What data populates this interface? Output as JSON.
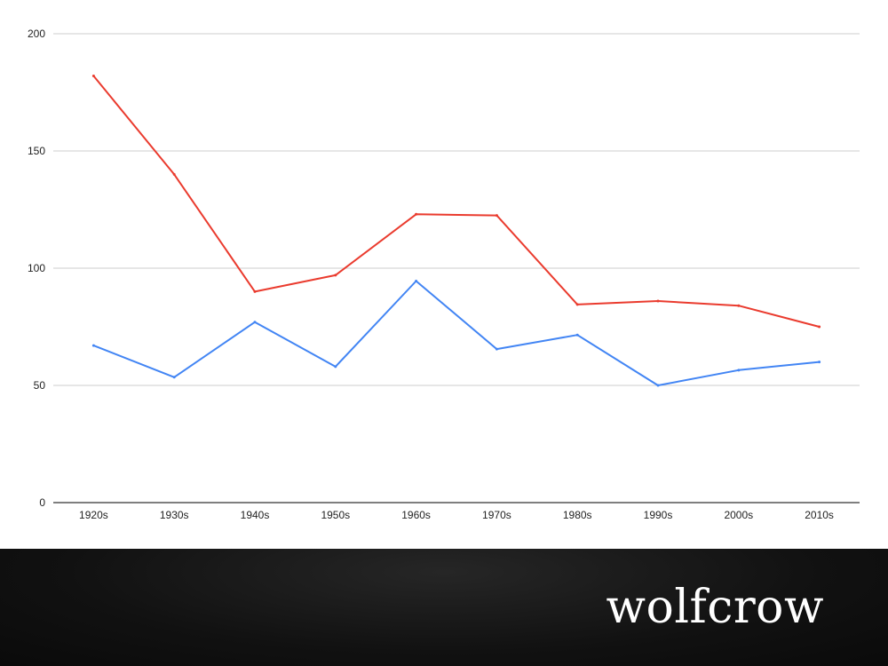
{
  "chart_data": {
    "type": "line",
    "categories": [
      "1920s",
      "1930s",
      "1940s",
      "1950s",
      "1960s",
      "1970s",
      "1980s",
      "1990s",
      "2000s",
      "2010s"
    ],
    "series": [
      {
        "color": "#ea3b2e",
        "values": [
          182,
          140,
          90,
          97,
          123,
          122.5,
          84.5,
          86,
          84,
          75
        ]
      },
      {
        "color": "#4285f4",
        "values": [
          67,
          53.5,
          77,
          58,
          94.5,
          65.5,
          71.5,
          50,
          56.5,
          60
        ]
      }
    ],
    "yticks": [
      0,
      50,
      100,
      150,
      200
    ],
    "ylim": [
      0,
      200
    ],
    "grid": true,
    "title": "",
    "xlabel": "",
    "ylabel": ""
  },
  "brand": {
    "logo_text": "wolfcrow"
  },
  "colors": {
    "gridline": "#cccccc",
    "axis": "#333333",
    "band_background": "#111111",
    "logo": "#ffffff"
  }
}
